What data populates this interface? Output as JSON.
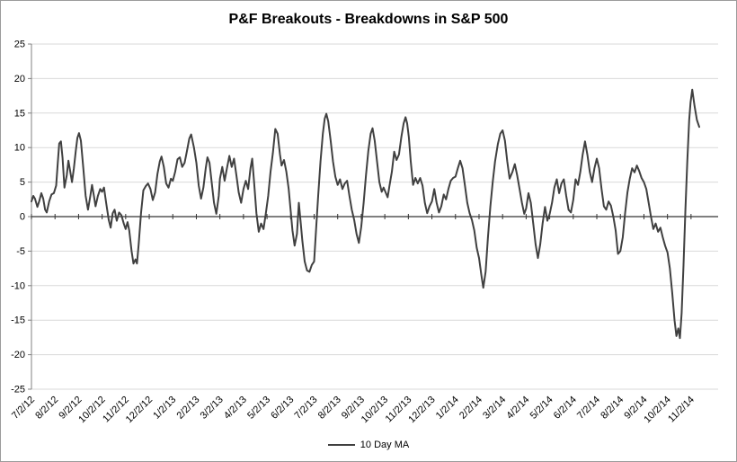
{
  "chart_data": {
    "type": "line",
    "title": "P&F Breakouts - Breakdowns in S&P 500",
    "xlabel": "",
    "ylabel": "",
    "ylim": [
      -25,
      25
    ],
    "ystep": 5,
    "x_domain": [
      0,
      29.15
    ],
    "grid": "horizontal",
    "legend_position": "bottom",
    "colors": {
      "line": "#404040",
      "gridline": "#d9d9d9",
      "zero_axis": "#333333",
      "axis": "#808080",
      "text": "#000000"
    },
    "x_tick_labels": [
      "7/2/12",
      "8/2/12",
      "9/2/12",
      "10/2/12",
      "11/2/12",
      "12/2/12",
      "1/2/13",
      "2/2/13",
      "3/2/13",
      "4/2/13",
      "5/2/13",
      "6/2/13",
      "7/2/13",
      "8/2/13",
      "9/2/13",
      "10/2/13",
      "11/2/13",
      "12/2/13",
      "1/2/14",
      "2/2/14",
      "3/2/14",
      "4/2/14",
      "5/2/14",
      "6/2/14",
      "7/2/14",
      "8/2/14",
      "9/2/14",
      "10/2/14",
      "11/2/14"
    ],
    "y_tick_labels": [
      "-25",
      "-20",
      "-15",
      "-10",
      "-5",
      "0",
      "5",
      "10",
      "15",
      "20",
      "25"
    ],
    "series": [
      {
        "name": "10 Day MA",
        "color": "#404040",
        "points": [
          [
            0.0,
            2.2
          ],
          [
            0.08,
            3.0
          ],
          [
            0.15,
            2.6
          ],
          [
            0.25,
            1.4
          ],
          [
            0.33,
            2.2
          ],
          [
            0.42,
            3.4
          ],
          [
            0.5,
            2.6
          ],
          [
            0.58,
            1.0
          ],
          [
            0.65,
            0.6
          ],
          [
            0.75,
            2.2
          ],
          [
            0.85,
            3.2
          ],
          [
            0.95,
            3.4
          ],
          [
            1.05,
            4.5
          ],
          [
            1.12,
            8.0
          ],
          [
            1.18,
            10.6
          ],
          [
            1.25,
            10.9
          ],
          [
            1.32,
            8.5
          ],
          [
            1.4,
            4.2
          ],
          [
            1.5,
            6.0
          ],
          [
            1.57,
            8.1
          ],
          [
            1.65,
            6.5
          ],
          [
            1.72,
            5.0
          ],
          [
            1.8,
            7.0
          ],
          [
            1.88,
            9.5
          ],
          [
            1.95,
            11.4
          ],
          [
            2.02,
            12.1
          ],
          [
            2.1,
            11.0
          ],
          [
            2.2,
            7.0
          ],
          [
            2.3,
            3.0
          ],
          [
            2.4,
            1.0
          ],
          [
            2.5,
            3.0
          ],
          [
            2.57,
            4.6
          ],
          [
            2.65,
            3.0
          ],
          [
            2.72,
            1.5
          ],
          [
            2.82,
            3.0
          ],
          [
            2.92,
            4.0
          ],
          [
            3.0,
            3.6
          ],
          [
            3.08,
            4.2
          ],
          [
            3.17,
            2.0
          ],
          [
            3.28,
            -0.5
          ],
          [
            3.36,
            -1.6
          ],
          [
            3.45,
            0.5
          ],
          [
            3.53,
            1.0
          ],
          [
            3.62,
            -0.6
          ],
          [
            3.72,
            0.6
          ],
          [
            3.82,
            0.2
          ],
          [
            3.92,
            -1.0
          ],
          [
            4.0,
            -1.8
          ],
          [
            4.08,
            -0.8
          ],
          [
            4.15,
            -2.0
          ],
          [
            4.25,
            -5.0
          ],
          [
            4.33,
            -6.8
          ],
          [
            4.42,
            -6.2
          ],
          [
            4.48,
            -6.8
          ],
          [
            4.55,
            -4.0
          ],
          [
            4.65,
            0.5
          ],
          [
            4.75,
            3.8
          ],
          [
            4.85,
            4.4
          ],
          [
            4.95,
            4.8
          ],
          [
            5.05,
            4.0
          ],
          [
            5.15,
            2.4
          ],
          [
            5.25,
            3.5
          ],
          [
            5.35,
            6.2
          ],
          [
            5.45,
            8.0
          ],
          [
            5.52,
            8.7
          ],
          [
            5.62,
            7.2
          ],
          [
            5.72,
            4.8
          ],
          [
            5.82,
            4.2
          ],
          [
            5.92,
            5.5
          ],
          [
            6.0,
            5.2
          ],
          [
            6.1,
            6.5
          ],
          [
            6.2,
            8.3
          ],
          [
            6.3,
            8.6
          ],
          [
            6.4,
            7.2
          ],
          [
            6.5,
            7.8
          ],
          [
            6.6,
            9.5
          ],
          [
            6.7,
            11.3
          ],
          [
            6.78,
            11.9
          ],
          [
            6.9,
            10.0
          ],
          [
            7.0,
            7.8
          ],
          [
            7.1,
            4.5
          ],
          [
            7.2,
            2.6
          ],
          [
            7.3,
            4.2
          ],
          [
            7.4,
            7.0
          ],
          [
            7.47,
            8.6
          ],
          [
            7.56,
            7.8
          ],
          [
            7.65,
            5.0
          ],
          [
            7.75,
            2.0
          ],
          [
            7.85,
            0.4
          ],
          [
            7.95,
            3.0
          ],
          [
            8.0,
            5.5
          ],
          [
            8.1,
            7.2
          ],
          [
            8.2,
            5.2
          ],
          [
            8.3,
            7.0
          ],
          [
            8.4,
            8.8
          ],
          [
            8.5,
            7.2
          ],
          [
            8.6,
            8.4
          ],
          [
            8.7,
            6.0
          ],
          [
            8.8,
            3.5
          ],
          [
            8.9,
            2.0
          ],
          [
            9.0,
            4.0
          ],
          [
            9.1,
            5.2
          ],
          [
            9.2,
            4.0
          ],
          [
            9.3,
            7.0
          ],
          [
            9.37,
            8.4
          ],
          [
            9.45,
            5.0
          ],
          [
            9.55,
            0.5
          ],
          [
            9.65,
            -2.2
          ],
          [
            9.75,
            -1.0
          ],
          [
            9.85,
            -1.8
          ],
          [
            9.95,
            0.5
          ],
          [
            10.05,
            3.0
          ],
          [
            10.15,
            6.5
          ],
          [
            10.25,
            9.2
          ],
          [
            10.35,
            12.7
          ],
          [
            10.45,
            12.0
          ],
          [
            10.55,
            9.0
          ],
          [
            10.62,
            7.4
          ],
          [
            10.72,
            8.2
          ],
          [
            10.82,
            6.5
          ],
          [
            10.92,
            4.0
          ],
          [
            11.0,
            1.0
          ],
          [
            11.08,
            -2.0
          ],
          [
            11.17,
            -4.2
          ],
          [
            11.27,
            -2.5
          ],
          [
            11.35,
            2.0
          ],
          [
            11.42,
            -0.5
          ],
          [
            11.5,
            -3.5
          ],
          [
            11.6,
            -6.5
          ],
          [
            11.7,
            -7.8
          ],
          [
            11.8,
            -8.0
          ],
          [
            11.9,
            -7.0
          ],
          [
            12.0,
            -6.5
          ],
          [
            12.08,
            -2.0
          ],
          [
            12.17,
            3.0
          ],
          [
            12.27,
            8.0
          ],
          [
            12.37,
            12.0
          ],
          [
            12.45,
            14.2
          ],
          [
            12.52,
            14.9
          ],
          [
            12.6,
            13.8
          ],
          [
            12.7,
            11.0
          ],
          [
            12.8,
            8.0
          ],
          [
            12.9,
            5.8
          ],
          [
            13.0,
            4.6
          ],
          [
            13.1,
            5.4
          ],
          [
            13.2,
            4.0
          ],
          [
            13.3,
            4.8
          ],
          [
            13.4,
            5.2
          ],
          [
            13.5,
            3.0
          ],
          [
            13.6,
            1.0
          ],
          [
            13.7,
            -0.5
          ],
          [
            13.8,
            -2.5
          ],
          [
            13.9,
            -3.8
          ],
          [
            14.0,
            -1.5
          ],
          [
            14.1,
            2.0
          ],
          [
            14.2,
            6.0
          ],
          [
            14.3,
            9.5
          ],
          [
            14.4,
            12.0
          ],
          [
            14.48,
            12.8
          ],
          [
            14.57,
            11.0
          ],
          [
            14.67,
            8.0
          ],
          [
            14.77,
            5.0
          ],
          [
            14.87,
            3.6
          ],
          [
            14.95,
            4.2
          ],
          [
            15.05,
            3.4
          ],
          [
            15.12,
            2.8
          ],
          [
            15.2,
            4.5
          ],
          [
            15.3,
            6.5
          ],
          [
            15.4,
            9.4
          ],
          [
            15.5,
            8.2
          ],
          [
            15.6,
            9.0
          ],
          [
            15.7,
            11.5
          ],
          [
            15.8,
            13.5
          ],
          [
            15.88,
            14.4
          ],
          [
            15.95,
            13.5
          ],
          [
            16.02,
            11.5
          ],
          [
            16.1,
            8.0
          ],
          [
            16.2,
            4.6
          ],
          [
            16.3,
            5.6
          ],
          [
            16.4,
            4.8
          ],
          [
            16.5,
            5.6
          ],
          [
            16.6,
            4.5
          ],
          [
            16.7,
            2.0
          ],
          [
            16.8,
            0.5
          ],
          [
            16.9,
            1.5
          ],
          [
            17.0,
            2.2
          ],
          [
            17.1,
            4.0
          ],
          [
            17.2,
            2.0
          ],
          [
            17.3,
            0.6
          ],
          [
            17.4,
            1.5
          ],
          [
            17.5,
            3.2
          ],
          [
            17.6,
            2.5
          ],
          [
            17.7,
            4.0
          ],
          [
            17.8,
            5.2
          ],
          [
            17.9,
            5.6
          ],
          [
            18.0,
            5.8
          ],
          [
            18.1,
            7.0
          ],
          [
            18.2,
            8.1
          ],
          [
            18.3,
            7.0
          ],
          [
            18.4,
            4.5
          ],
          [
            18.5,
            2.0
          ],
          [
            18.6,
            0.5
          ],
          [
            18.7,
            -0.5
          ],
          [
            18.8,
            -2.0
          ],
          [
            18.9,
            -4.5
          ],
          [
            19.0,
            -6.0
          ],
          [
            19.1,
            -8.5
          ],
          [
            19.18,
            -10.3
          ],
          [
            19.28,
            -8.0
          ],
          [
            19.38,
            -3.0
          ],
          [
            19.48,
            1.5
          ],
          [
            19.58,
            5.0
          ],
          [
            19.68,
            8.0
          ],
          [
            19.8,
            10.5
          ],
          [
            19.9,
            12.0
          ],
          [
            20.0,
            12.5
          ],
          [
            20.1,
            11.0
          ],
          [
            20.2,
            8.0
          ],
          [
            20.3,
            5.5
          ],
          [
            20.42,
            6.5
          ],
          [
            20.52,
            7.6
          ],
          [
            20.62,
            6.0
          ],
          [
            20.72,
            4.0
          ],
          [
            20.82,
            2.0
          ],
          [
            20.92,
            0.4
          ],
          [
            21.0,
            1.2
          ],
          [
            21.1,
            3.4
          ],
          [
            21.2,
            2.0
          ],
          [
            21.3,
            -1.0
          ],
          [
            21.4,
            -4.0
          ],
          [
            21.5,
            -6.0
          ],
          [
            21.6,
            -4.0
          ],
          [
            21.7,
            -1.0
          ],
          [
            21.8,
            1.4
          ],
          [
            21.9,
            -0.6
          ],
          [
            22.0,
            0.4
          ],
          [
            22.1,
            2.0
          ],
          [
            22.2,
            4.2
          ],
          [
            22.3,
            5.4
          ],
          [
            22.4,
            3.4
          ],
          [
            22.5,
            4.8
          ],
          [
            22.6,
            5.4
          ],
          [
            22.7,
            3.0
          ],
          [
            22.8,
            1.0
          ],
          [
            22.9,
            0.6
          ],
          [
            23.0,
            2.4
          ],
          [
            23.1,
            5.4
          ],
          [
            23.2,
            4.6
          ],
          [
            23.3,
            6.5
          ],
          [
            23.4,
            9.0
          ],
          [
            23.5,
            10.9
          ],
          [
            23.6,
            9.0
          ],
          [
            23.7,
            6.5
          ],
          [
            23.8,
            5.0
          ],
          [
            23.9,
            7.0
          ],
          [
            24.0,
            8.4
          ],
          [
            24.1,
            7.0
          ],
          [
            24.2,
            4.0
          ],
          [
            24.3,
            1.5
          ],
          [
            24.4,
            1.0
          ],
          [
            24.5,
            2.2
          ],
          [
            24.6,
            1.6
          ],
          [
            24.7,
            0.0
          ],
          [
            24.8,
            -2.0
          ],
          [
            24.9,
            -5.4
          ],
          [
            25.0,
            -5.0
          ],
          [
            25.1,
            -3.0
          ],
          [
            25.2,
            0.5
          ],
          [
            25.3,
            3.5
          ],
          [
            25.4,
            5.5
          ],
          [
            25.5,
            7.0
          ],
          [
            25.6,
            6.4
          ],
          [
            25.7,
            7.4
          ],
          [
            25.8,
            6.6
          ],
          [
            25.9,
            5.6
          ],
          [
            26.0,
            5.0
          ],
          [
            26.1,
            4.0
          ],
          [
            26.2,
            2.0
          ],
          [
            26.3,
            0.0
          ],
          [
            26.4,
            -1.8
          ],
          [
            26.5,
            -1.0
          ],
          [
            26.6,
            -2.2
          ],
          [
            26.7,
            -1.6
          ],
          [
            26.8,
            -3.0
          ],
          [
            26.9,
            -4.2
          ],
          [
            27.0,
            -5.2
          ],
          [
            27.1,
            -7.5
          ],
          [
            27.2,
            -11.0
          ],
          [
            27.3,
            -15.0
          ],
          [
            27.38,
            -17.3
          ],
          [
            27.46,
            -16.2
          ],
          [
            27.53,
            -17.6
          ],
          [
            27.6,
            -14.0
          ],
          [
            27.68,
            -7.0
          ],
          [
            27.76,
            1.0
          ],
          [
            27.84,
            8.0
          ],
          [
            27.92,
            14.0
          ],
          [
            27.98,
            16.5
          ],
          [
            28.05,
            18.4
          ],
          [
            28.15,
            16.0
          ],
          [
            28.25,
            14.0
          ],
          [
            28.35,
            13.0
          ]
        ]
      }
    ]
  },
  "legend": {
    "label": "10 Day MA"
  }
}
